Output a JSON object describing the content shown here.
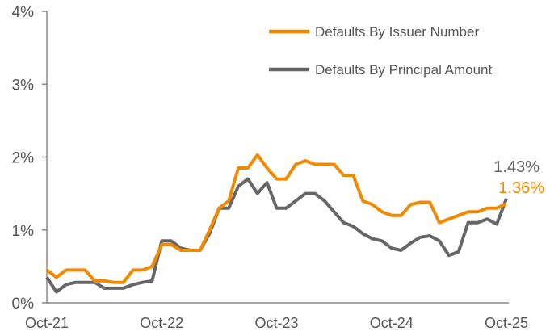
{
  "chart_data": {
    "type": "line",
    "title": "",
    "xlabel": "",
    "ylabel": "",
    "ylim": [
      0,
      4
    ],
    "yticks": [
      "0%",
      "1%",
      "2%",
      "3%",
      "4%"
    ],
    "xticks": [
      "Oct-21",
      "Oct-22",
      "Oct-23",
      "Oct-24",
      "Oct-25"
    ],
    "x_start": "Oct-21",
    "x_end": "Oct-25",
    "grid": false,
    "legend": "top-right",
    "series": [
      {
        "name": "Defaults By Issuer Number",
        "color": "#F08A00",
        "end_label": "1.36%",
        "values": [
          0.45,
          0.35,
          0.45,
          0.45,
          0.45,
          0.3,
          0.3,
          0.28,
          0.28,
          0.45,
          0.45,
          0.5,
          0.8,
          0.8,
          0.72,
          0.72,
          0.72,
          1.0,
          1.3,
          1.4,
          1.85,
          1.85,
          2.03,
          1.85,
          1.7,
          1.7,
          1.9,
          1.95,
          1.9,
          1.9,
          1.9,
          1.75,
          1.75,
          1.4,
          1.35,
          1.25,
          1.2,
          1.2,
          1.35,
          1.38,
          1.38,
          1.1,
          1.15,
          1.2,
          1.25,
          1.25,
          1.3,
          1.3,
          1.36
        ]
      },
      {
        "name": "Defaults By Principal Amount",
        "color": "#666666",
        "end_label": "1.43%",
        "values": [
          0.35,
          0.15,
          0.25,
          0.28,
          0.28,
          0.28,
          0.2,
          0.2,
          0.2,
          0.25,
          0.28,
          0.3,
          0.85,
          0.85,
          0.75,
          0.72,
          0.72,
          0.95,
          1.3,
          1.3,
          1.6,
          1.7,
          1.5,
          1.65,
          1.3,
          1.3,
          1.4,
          1.5,
          1.5,
          1.4,
          1.25,
          1.1,
          1.05,
          0.95,
          0.88,
          0.85,
          0.75,
          0.72,
          0.82,
          0.9,
          0.92,
          0.85,
          0.65,
          0.7,
          1.1,
          1.1,
          1.15,
          1.08,
          1.43
        ]
      }
    ]
  }
}
